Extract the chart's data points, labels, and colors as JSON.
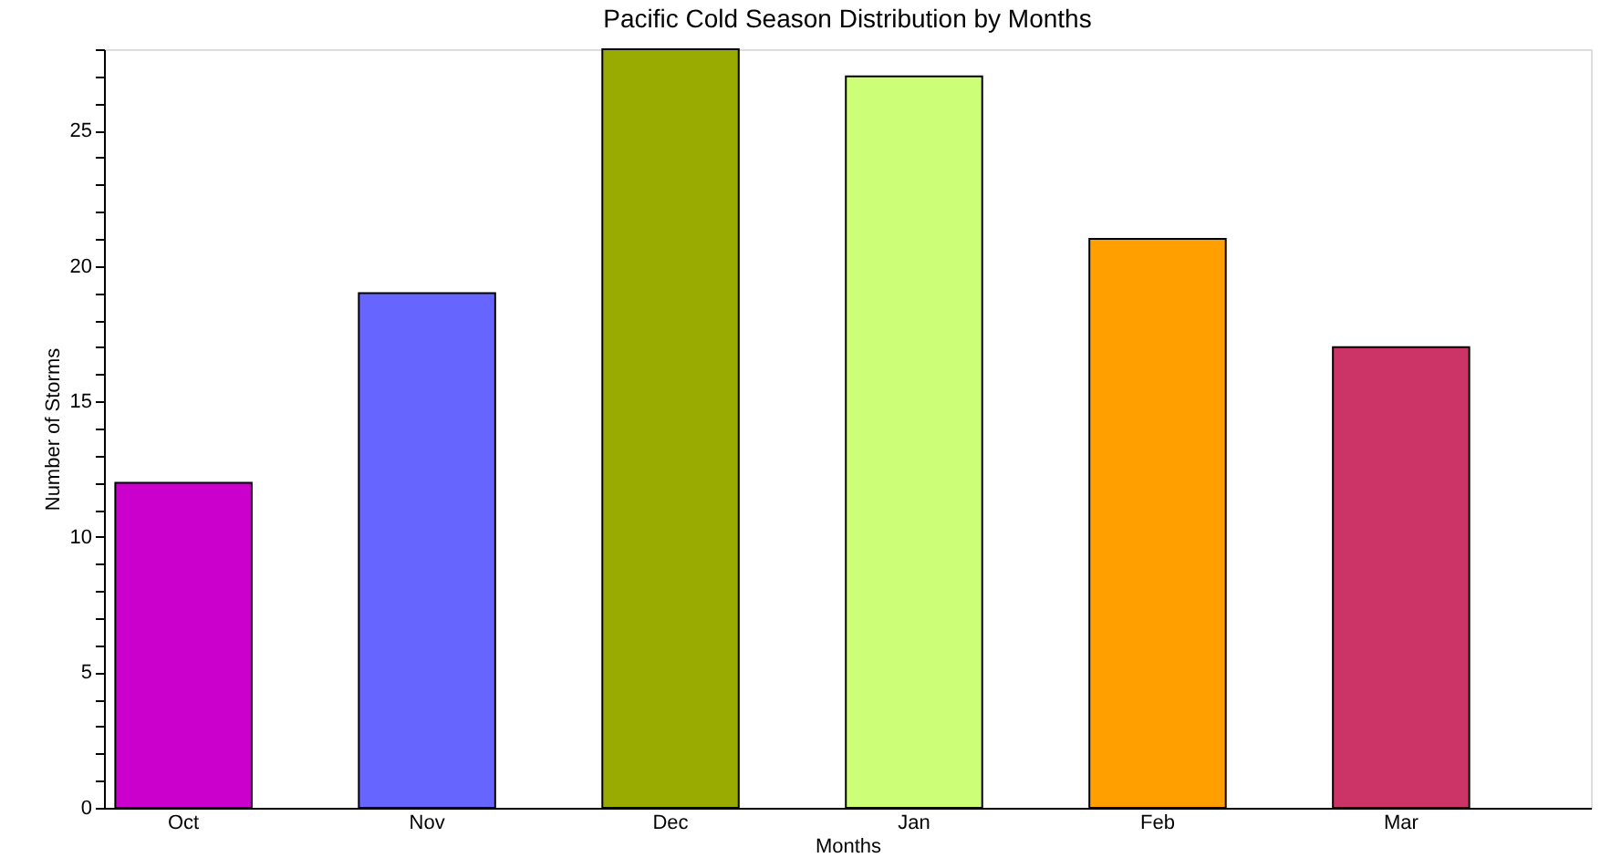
{
  "chart_data": {
    "type": "bar",
    "title": "Pacific Cold Season Distribution by Months",
    "xlabel": "Months",
    "ylabel": "Number of Storms",
    "categories": [
      "Oct",
      "Nov",
      "Dec",
      "Jan",
      "Feb",
      "Mar"
    ],
    "values": [
      12,
      19,
      28,
      27,
      21,
      17
    ],
    "colors": [
      "#cc00cc",
      "#6666ff",
      "#99aa00",
      "#ccff77",
      "#ffa000",
      "#cc3366"
    ],
    "ylim": [
      0,
      28
    ],
    "yticks": [
      0,
      {
        "value": 1,
        "label": null
      },
      {
        "value": 2,
        "label": null
      },
      {
        "value": 3,
        "label": null
      },
      {
        "value": 4,
        "label": null
      },
      5,
      {
        "value": 6,
        "label": null
      },
      {
        "value": 7,
        "label": null
      },
      {
        "value": 8,
        "label": null
      },
      {
        "value": 9,
        "label": null
      },
      10,
      {
        "value": 11,
        "label": null
      },
      {
        "value": 12,
        "label": null
      },
      {
        "value": 13,
        "label": null
      },
      {
        "value": 14,
        "label": null
      },
      15,
      {
        "value": 16,
        "label": null
      },
      {
        "value": 17,
        "label": null
      },
      {
        "value": 18,
        "label": null
      },
      {
        "value": 19,
        "label": null
      },
      20,
      {
        "value": 21,
        "label": null
      },
      {
        "value": 22,
        "label": null
      },
      {
        "value": 23,
        "label": null
      },
      {
        "value": 24,
        "label": null
      },
      25,
      {
        "value": 26,
        "label": null
      },
      {
        "value": 27,
        "label": null
      },
      {
        "value": 28,
        "label": null
      }
    ],
    "grid": false
  }
}
